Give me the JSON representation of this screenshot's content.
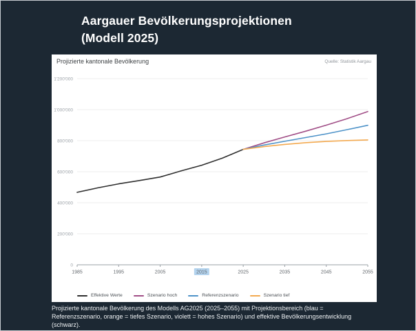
{
  "page": {
    "title_line1": "Aargauer Bevölkerungsprojektionen",
    "title_line2": "(Modell 2025)",
    "background_color": "#1c2833",
    "caption": "Projizierte kantonale Bevölkerung des Modells AG2025 (2025–2055) mit Projektionsbereich (blau = Referenzszenario, orange = tiefes Szenario, violett = hohes Szenario) und effektive Bevölkerungsentwicklung (schwarz)."
  },
  "panel": {
    "header": "Projizierte kantonale Bevölkerung",
    "source": "Quelle: Statistik Aargau"
  },
  "chart_data": {
    "type": "line",
    "title": "Projizierte kantonale Bevölkerung",
    "xlabel": "",
    "ylabel": "",
    "xlim": [
      1985,
      2055
    ],
    "ylim": [
      0,
      1200000
    ],
    "x_ticks": [
      1985,
      1995,
      2005,
      2015,
      2025,
      2035,
      2045,
      2055
    ],
    "highlighted_x_tick": 2015,
    "y_ticks": [
      0,
      200000,
      400000,
      600000,
      800000,
      1000000,
      1200000
    ],
    "grid": true,
    "legend_position": "bottom",
    "colors": {
      "gridline": "#ececec",
      "axis": "#9aa0a6",
      "y_tick_label": "#9aa0a6",
      "x_tick_label": "#63686d",
      "x_tick_highlight_bg": "#b3d3ee"
    },
    "series": [
      {
        "name": "Effektive Werte",
        "color": "#2e2e2e",
        "x": [
          1985,
          1990,
          1995,
          2000,
          2005,
          2010,
          2015,
          2020,
          2025
        ],
        "values": [
          467000,
          496000,
          522000,
          543000,
          566000,
          605000,
          642000,
          688000,
          744000
        ]
      },
      {
        "name": "Szenario hoch",
        "color": "#a04d86",
        "x": [
          2025,
          2030,
          2035,
          2040,
          2045,
          2050,
          2055
        ],
        "values": [
          744000,
          786000,
          824000,
          861000,
          900000,
          942000,
          988000
        ]
      },
      {
        "name": "Referenzszenario",
        "color": "#4d92c8",
        "x": [
          2025,
          2030,
          2035,
          2040,
          2045,
          2050,
          2055
        ],
        "values": [
          744000,
          772000,
          796000,
          820000,
          844000,
          871000,
          899000
        ]
      },
      {
        "name": "Szenario tief",
        "color": "#f3a94f",
        "x": [
          2025,
          2030,
          2035,
          2040,
          2045,
          2050,
          2055
        ],
        "values": [
          744000,
          762000,
          776000,
          787000,
          795000,
          801000,
          805000
        ]
      }
    ]
  }
}
